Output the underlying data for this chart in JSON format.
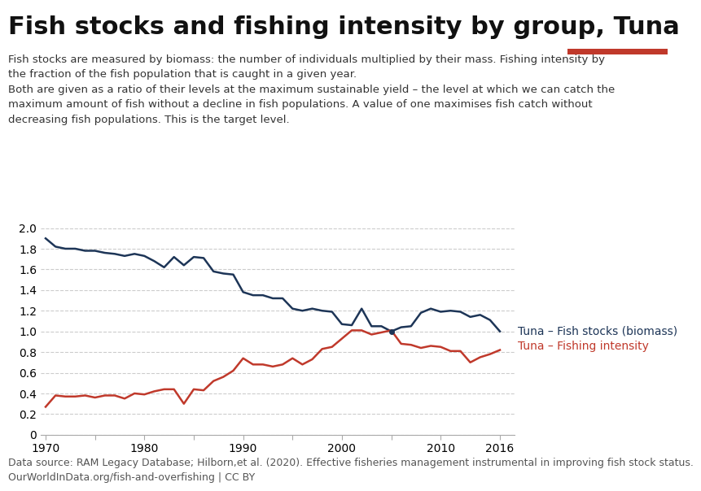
{
  "title": "Fish stocks and fishing intensity by group, Tuna",
  "subtitle_lines": [
    "Fish stocks are measured by biomass: the number of individuals multiplied by their mass. Fishing intensity by",
    "the fraction of the fish population that is caught in a given year.",
    "Both are given as a ratio of their levels at the maximum sustainable yield – the level at which we can catch the",
    "maximum amount of fish without a decline in fish populations. A value of one maximises fish catch without",
    "decreasing fish populations. This is the target level."
  ],
  "footer_lines": [
    "Data source: RAM Legacy Database; Hilborn,et al. (2020). Effective fisheries management instrumental in improving fish stock status.",
    "OurWorldInData.org/fish-and-overfishing | CC BY"
  ],
  "biomass_years": [
    1970,
    1971,
    1972,
    1973,
    1974,
    1975,
    1976,
    1977,
    1978,
    1979,
    1980,
    1981,
    1982,
    1983,
    1984,
    1985,
    1986,
    1987,
    1988,
    1989,
    1990,
    1991,
    1992,
    1993,
    1994,
    1995,
    1996,
    1997,
    1998,
    1999,
    2000,
    2001,
    2002,
    2003,
    2004,
    2005,
    2006,
    2007,
    2008,
    2009,
    2010,
    2011,
    2012,
    2013,
    2014,
    2015,
    2016
  ],
  "biomass_values": [
    1.9,
    1.82,
    1.8,
    1.8,
    1.78,
    1.78,
    1.76,
    1.75,
    1.73,
    1.75,
    1.73,
    1.68,
    1.62,
    1.72,
    1.64,
    1.72,
    1.71,
    1.58,
    1.56,
    1.55,
    1.38,
    1.35,
    1.35,
    1.32,
    1.32,
    1.22,
    1.2,
    1.22,
    1.2,
    1.19,
    1.07,
    1.06,
    1.22,
    1.05,
    1.05,
    1.0,
    1.04,
    1.05,
    1.18,
    1.22,
    1.19,
    1.2,
    1.19,
    1.14,
    1.16,
    1.11,
    1.0
  ],
  "intensity_years": [
    1970,
    1971,
    1972,
    1973,
    1974,
    1975,
    1976,
    1977,
    1978,
    1979,
    1980,
    1981,
    1982,
    1983,
    1984,
    1985,
    1986,
    1987,
    1988,
    1989,
    1990,
    1991,
    1992,
    1993,
    1994,
    1995,
    1996,
    1997,
    1998,
    1999,
    2000,
    2001,
    2002,
    2003,
    2004,
    2005,
    2006,
    2007,
    2008,
    2009,
    2010,
    2011,
    2012,
    2013,
    2014,
    2015,
    2016
  ],
  "intensity_values": [
    0.27,
    0.38,
    0.37,
    0.37,
    0.38,
    0.36,
    0.38,
    0.38,
    0.35,
    0.4,
    0.39,
    0.42,
    0.44,
    0.44,
    0.3,
    0.44,
    0.43,
    0.52,
    0.56,
    0.62,
    0.74,
    0.68,
    0.68,
    0.66,
    0.68,
    0.74,
    0.68,
    0.73,
    0.83,
    0.85,
    0.93,
    1.01,
    1.01,
    0.97,
    0.99,
    1.01,
    0.88,
    0.87,
    0.84,
    0.86,
    0.85,
    0.81,
    0.81,
    0.7,
    0.75,
    0.78,
    0.82
  ],
  "biomass_color": "#1d3557",
  "intensity_color": "#c0392b",
  "biomass_label": "Tuna – Fish stocks (biomass)",
  "intensity_label": "Tuna – Fishing intensity",
  "ylim": [
    0,
    2.1
  ],
  "yticks": [
    0,
    0.2,
    0.4,
    0.6,
    0.8,
    1.0,
    1.2,
    1.4,
    1.6,
    1.8,
    2.0
  ],
  "xlim": [
    1969.5,
    2017.5
  ],
  "xticks": [
    1970,
    1975,
    1980,
    1985,
    1990,
    1995,
    2000,
    2005,
    2010,
    2016
  ],
  "xtick_labels": [
    "1970",
    "",
    "1980",
    "",
    "1990",
    "",
    "2000",
    "",
    "2010",
    "2016"
  ],
  "background_color": "#ffffff",
  "grid_color": "#cccccc",
  "owid_box_bg": "#1d3557",
  "owid_box_red": "#c0392b",
  "title_fontsize": 22,
  "subtitle_fontsize": 9.5,
  "footer_fontsize": 9,
  "axis_fontsize": 10,
  "legend_fontsize": 10,
  "line_width": 1.8
}
